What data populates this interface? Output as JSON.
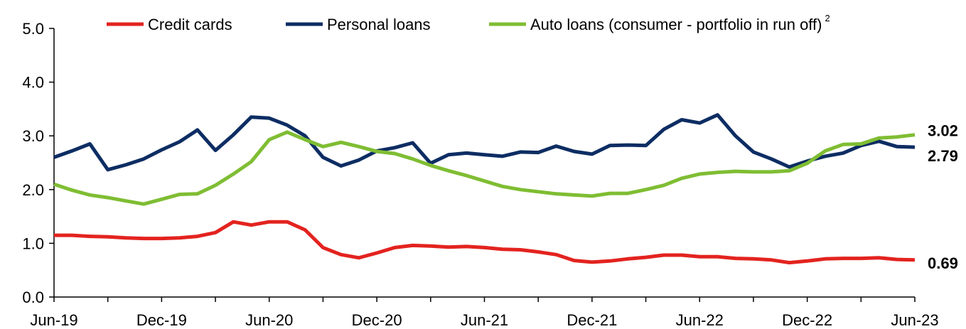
{
  "chart_data": {
    "type": "line",
    "title": "",
    "xlabel": "",
    "ylabel": "",
    "ylim": [
      0,
      5
    ],
    "y_ticks": [
      "0.0",
      "1.0",
      "2.0",
      "3.0",
      "4.0",
      "5.0"
    ],
    "x_tick_labels": [
      "Jun-19",
      "Dec-19",
      "Jun-20",
      "Dec-20",
      "Jun-21",
      "Dec-21",
      "Jun-22",
      "Dec-22",
      "Jun-23"
    ],
    "x": [
      "Jun-19",
      "Jul-19",
      "Aug-19",
      "Sep-19",
      "Oct-19",
      "Nov-19",
      "Dec-19",
      "Jan-20",
      "Feb-20",
      "Mar-20",
      "Apr-20",
      "May-20",
      "Jun-20",
      "Jul-20",
      "Aug-20",
      "Sep-20",
      "Oct-20",
      "Nov-20",
      "Dec-20",
      "Jan-21",
      "Feb-21",
      "Mar-21",
      "Apr-21",
      "May-21",
      "Jun-21",
      "Jul-21",
      "Aug-21",
      "Sep-21",
      "Oct-21",
      "Nov-21",
      "Dec-21",
      "Jan-22",
      "Feb-22",
      "Mar-22",
      "Apr-22",
      "May-22",
      "Jun-22",
      "Jul-22",
      "Aug-22",
      "Sep-22",
      "Oct-22",
      "Nov-22",
      "Dec-22",
      "Jan-23",
      "Feb-23",
      "Mar-23",
      "Apr-23",
      "May-23",
      "Jun-23"
    ],
    "grid": false,
    "legend_position": "top",
    "series": [
      {
        "name": "Credit cards",
        "color": "#e3231f",
        "end_label": "0.69",
        "values": [
          1.15,
          1.15,
          1.13,
          1.12,
          1.1,
          1.09,
          1.09,
          1.1,
          1.13,
          1.2,
          1.4,
          1.34,
          1.4,
          1.4,
          1.25,
          0.92,
          0.79,
          0.73,
          0.82,
          0.92,
          0.96,
          0.95,
          0.93,
          0.94,
          0.92,
          0.89,
          0.88,
          0.84,
          0.79,
          0.68,
          0.65,
          0.67,
          0.71,
          0.74,
          0.78,
          0.78,
          0.75,
          0.75,
          0.72,
          0.71,
          0.69,
          0.64,
          0.67,
          0.71,
          0.72,
          0.72,
          0.73,
          0.7,
          0.69
        ]
      },
      {
        "name": "Personal loans",
        "color": "#0d2d63",
        "end_label": "2.79",
        "values": [
          2.6,
          2.72,
          2.85,
          2.37,
          2.46,
          2.57,
          2.74,
          2.89,
          3.11,
          2.73,
          3.02,
          3.35,
          3.33,
          3.2,
          3.0,
          2.6,
          2.44,
          2.55,
          2.72,
          2.78,
          2.87,
          2.49,
          2.65,
          2.68,
          2.65,
          2.62,
          2.7,
          2.69,
          2.81,
          2.71,
          2.66,
          2.82,
          2.83,
          2.82,
          3.12,
          3.3,
          3.24,
          3.39,
          3.0,
          2.7,
          2.57,
          2.42,
          2.53,
          2.62,
          2.68,
          2.82,
          2.9,
          2.8,
          2.79
        ]
      },
      {
        "name": "Auto loans (consumer - portfolio in run off)",
        "superscript": "2",
        "color": "#7fbd33",
        "end_label": "3.02",
        "values": [
          2.1,
          1.99,
          1.9,
          1.85,
          1.79,
          1.73,
          1.82,
          1.91,
          1.92,
          2.08,
          2.29,
          2.52,
          2.93,
          3.07,
          2.93,
          2.8,
          2.88,
          2.8,
          2.71,
          2.67,
          2.57,
          2.45,
          2.35,
          2.26,
          2.16,
          2.06,
          2.0,
          1.96,
          1.92,
          1.9,
          1.88,
          1.93,
          1.93,
          2.0,
          2.08,
          2.21,
          2.29,
          2.32,
          2.34,
          2.33,
          2.33,
          2.35,
          2.49,
          2.72,
          2.84,
          2.85,
          2.96,
          2.98,
          3.02
        ]
      }
    ]
  }
}
